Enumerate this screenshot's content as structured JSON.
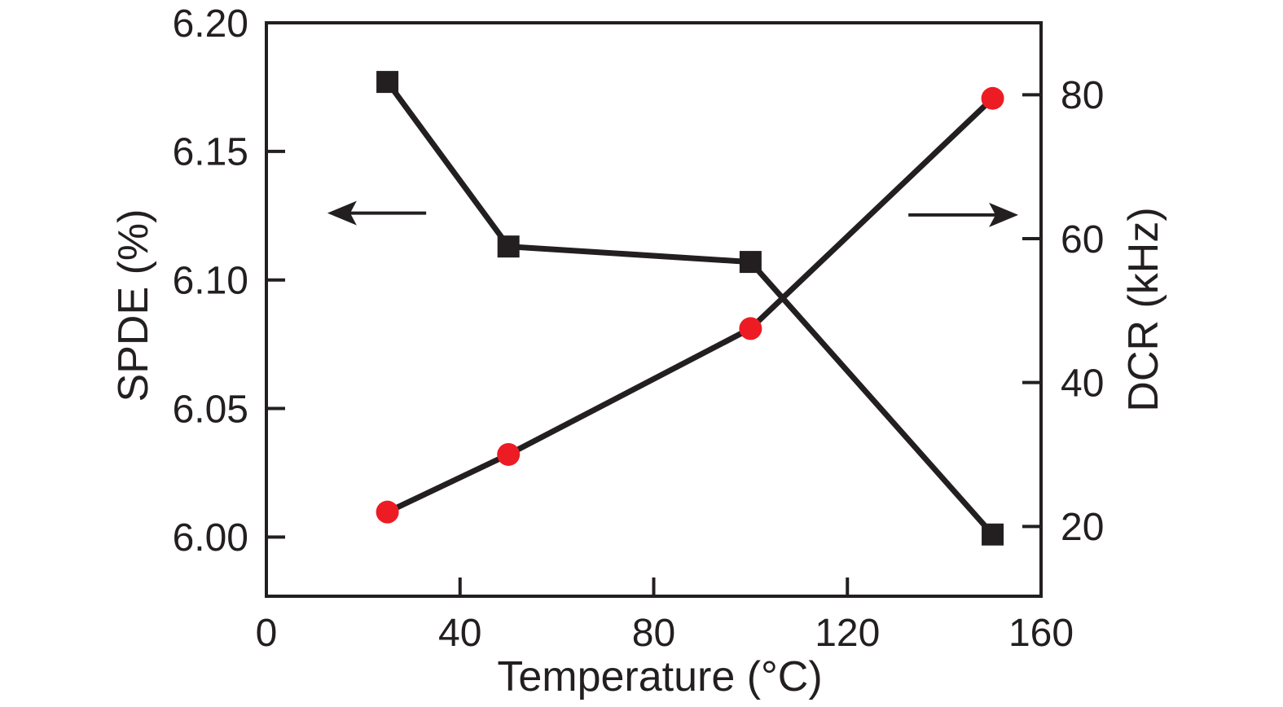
{
  "figure": {
    "background": "#ffffff",
    "axis_color": "#231f20"
  },
  "chart_data": {
    "type": "line",
    "title": "",
    "xlabel": "Temperature (°C)",
    "ylabel_left": "SPDE (%)",
    "ylabel_right": "DCR (kHz)",
    "x": [
      25,
      50,
      100,
      150
    ],
    "series": [
      {
        "name": "SPDE",
        "axis": "left",
        "marker": "square",
        "marker_color": "#231f20",
        "line_color": "#231f20",
        "values": [
          6.177,
          6.113,
          6.107,
          6.001
        ]
      },
      {
        "name": "DCR",
        "axis": "right",
        "marker": "circle",
        "marker_color": "#ed1c24",
        "line_color": "#231f20",
        "values": [
          22,
          30,
          47.5,
          79.5
        ]
      }
    ],
    "xlim": [
      0,
      160
    ],
    "xticks": [
      0,
      40,
      80,
      120,
      160
    ],
    "xtick_labels": [
      "0",
      "40",
      "80",
      "120",
      "160"
    ],
    "ylim_left": [
      5.977,
      6.2
    ],
    "yticks_left": [
      6.0,
      6.05,
      6.1,
      6.15,
      6.2
    ],
    "ytick_labels_left": [
      "6.00",
      "6.05",
      "6.10",
      "6.15",
      "6.20"
    ],
    "ylim_right": [
      10.3,
      90
    ],
    "yticks_right": [
      20,
      40,
      60,
      80
    ],
    "ytick_labels_right": [
      "20",
      "40",
      "60",
      "80"
    ],
    "grid": false,
    "legend": "none",
    "annotations": [
      {
        "type": "arrow",
        "points_to": "left-axis",
        "axis": "left",
        "x_tail": 33,
        "x_tip": 12.6,
        "y": 6.126
      },
      {
        "type": "arrow",
        "points_to": "right-axis",
        "axis": "right",
        "x_tail": 132.6,
        "x_tip": 155.3,
        "y": 63.3
      }
    ]
  }
}
